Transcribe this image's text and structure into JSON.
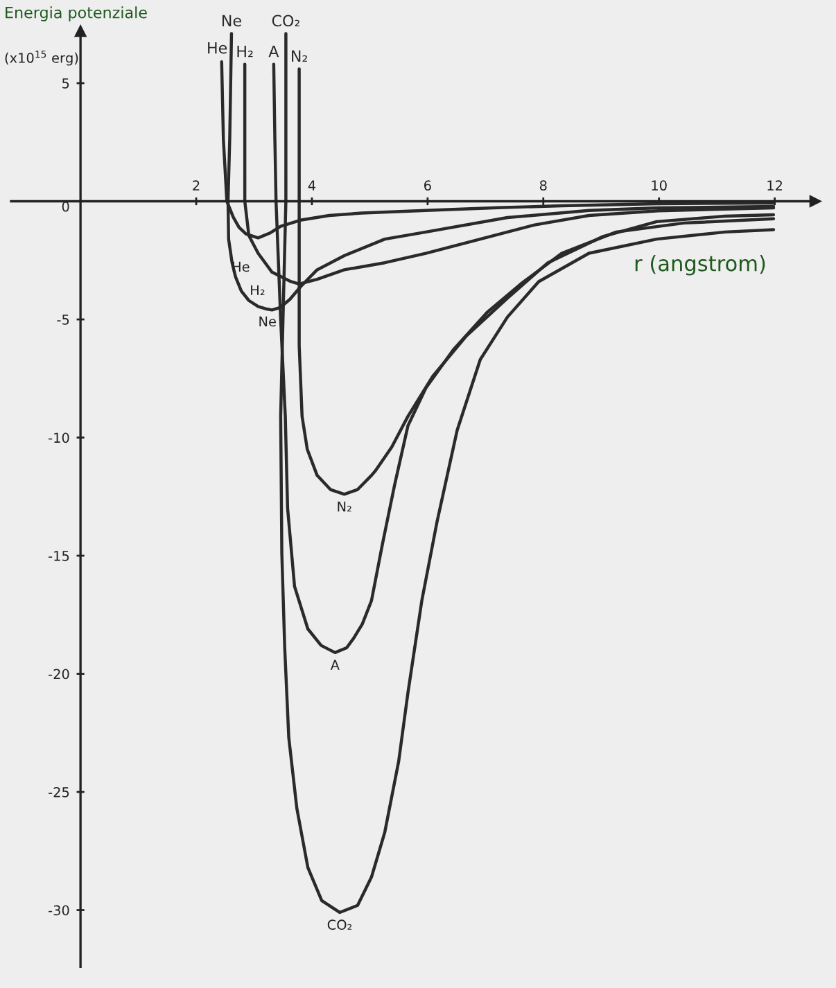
{
  "chart_data": {
    "type": "line",
    "xlabel": "r (angstrom)",
    "ylabel": "Energia potenziale",
    "xlim": [
      -1.2,
      12.7
    ],
    "ylim": [
      -32.4,
      7.2
    ],
    "xticks": [
      2,
      4,
      6,
      8,
      10,
      12
    ],
    "yticks": [
      5,
      0,
      -5,
      -10,
      -15,
      -20,
      -25,
      -30
    ],
    "marker": "none",
    "line_style": "solid",
    "series": [
      {
        "name": "He",
        "color": "#2a2a2a",
        "x": [
          2.44,
          2.47,
          2.53,
          2.64,
          2.74,
          2.86,
          3.07,
          3.27,
          3.46,
          3.8,
          4.3,
          4.86,
          5.97,
          7.22,
          8.32,
          9.99,
          11.98
        ],
        "values": [
          5.9,
          2.6,
          0.0,
          -0.67,
          -1.1,
          -1.38,
          -1.55,
          -1.35,
          -1.06,
          -0.8,
          -0.6,
          -0.5,
          -0.39,
          -0.27,
          -0.19,
          -0.1,
          -0.07
        ]
      },
      {
        "name": "Ne",
        "color": "#2a2a2a",
        "x": [
          2.61,
          2.58,
          2.55,
          2.56,
          2.62,
          2.68,
          2.78,
          2.91,
          3.07,
          3.22,
          3.31,
          3.45,
          3.62,
          3.81,
          4.09,
          4.56,
          5.26,
          5.97,
          7.38,
          8.79,
          9.99,
          11.98
        ],
        "values": [
          7.1,
          2.7,
          0.0,
          -1.6,
          -2.6,
          -3.2,
          -3.8,
          -4.2,
          -4.45,
          -4.56,
          -4.6,
          -4.5,
          -4.15,
          -3.6,
          -2.9,
          -2.3,
          -1.6,
          -1.3,
          -0.69,
          -0.39,
          -0.28,
          -0.22
        ]
      },
      {
        "name": "H₂",
        "color": "#2a2a2a",
        "x": [
          2.84,
          2.84,
          2.84,
          2.91,
          3.07,
          3.31,
          3.62,
          3.78,
          4.09,
          4.56,
          5.26,
          5.97,
          6.91,
          7.85,
          8.79,
          9.99,
          11.98
        ],
        "values": [
          5.8,
          2.6,
          0.0,
          -1.45,
          -2.2,
          -3.0,
          -3.38,
          -3.5,
          -3.3,
          -2.9,
          -2.6,
          -2.2,
          -1.6,
          -1.0,
          -0.6,
          -0.4,
          -0.28
        ]
      },
      {
        "name": "A",
        "color": "#2a2a2a",
        "x": [
          3.34,
          3.36,
          3.38,
          3.46,
          3.54,
          3.58,
          3.7,
          3.93,
          4.16,
          4.4,
          4.6,
          4.72,
          4.87,
          5.03,
          5.22,
          5.43,
          5.66,
          5.97,
          6.44,
          7.03,
          7.61,
          8.32,
          9.26,
          10.43,
          11.98
        ],
        "values": [
          5.8,
          2.6,
          0.0,
          -5.0,
          -9.1,
          -13.0,
          -16.3,
          -18.1,
          -18.8,
          -19.1,
          -18.9,
          -18.5,
          -17.9,
          -16.9,
          -14.5,
          -12.0,
          -9.5,
          -7.9,
          -6.3,
          -4.7,
          -3.5,
          -2.2,
          -1.3,
          -0.92,
          -0.74
        ]
      },
      {
        "name": "CO₂",
        "color": "#2a2a2a",
        "x": [
          3.55,
          3.55,
          3.55,
          3.5,
          3.46,
          3.48,
          3.53,
          3.6,
          3.74,
          3.93,
          4.17,
          4.48,
          4.79,
          5.03,
          5.26,
          5.5,
          5.66,
          5.9,
          6.16,
          6.51,
          6.91,
          7.38,
          7.92,
          8.79,
          9.96,
          11.14,
          11.98
        ],
        "values": [
          7.1,
          2.6,
          0.0,
          -5.0,
          -9.1,
          -14.9,
          -18.9,
          -22.7,
          -25.7,
          -28.2,
          -29.6,
          -30.1,
          -29.8,
          -28.6,
          -26.7,
          -23.7,
          -20.8,
          -16.9,
          -13.6,
          -9.7,
          -6.7,
          -4.9,
          -3.4,
          -2.2,
          -1.6,
          -1.3,
          -1.2
        ]
      },
      {
        "name": "N₂",
        "color": "#2a2a2a",
        "x": [
          3.78,
          3.78,
          3.78,
          3.78,
          3.83,
          3.92,
          4.09,
          4.32,
          4.56,
          4.79,
          5.03,
          5.1,
          5.38,
          5.66,
          6.09,
          6.67,
          7.38,
          8.08,
          9.02,
          9.96,
          11.14,
          11.98
        ],
        "values": [
          5.6,
          2.6,
          0.0,
          -6.1,
          -9.1,
          -10.5,
          -11.6,
          -12.2,
          -12.4,
          -12.2,
          -11.6,
          -11.4,
          -10.4,
          -9.1,
          -7.4,
          -5.7,
          -4.1,
          -2.6,
          -1.5,
          -0.86,
          -0.63,
          -0.57
        ]
      }
    ],
    "annotations": [
      {
        "text": "He",
        "x": 3.07,
        "y": -1.55
      },
      {
        "text": "Ne",
        "x": 3.31,
        "y": -4.6
      },
      {
        "text": "H₂",
        "x": 3.78,
        "y": -3.5
      },
      {
        "text": "N₂",
        "x": 4.56,
        "y": -12.4
      },
      {
        "text": "A",
        "x": 4.4,
        "y": -19.1
      },
      {
        "text": "CO₂",
        "x": 4.48,
        "y": -30.1
      },
      "(x10$^{15}$ erg)"
    ]
  }
}
